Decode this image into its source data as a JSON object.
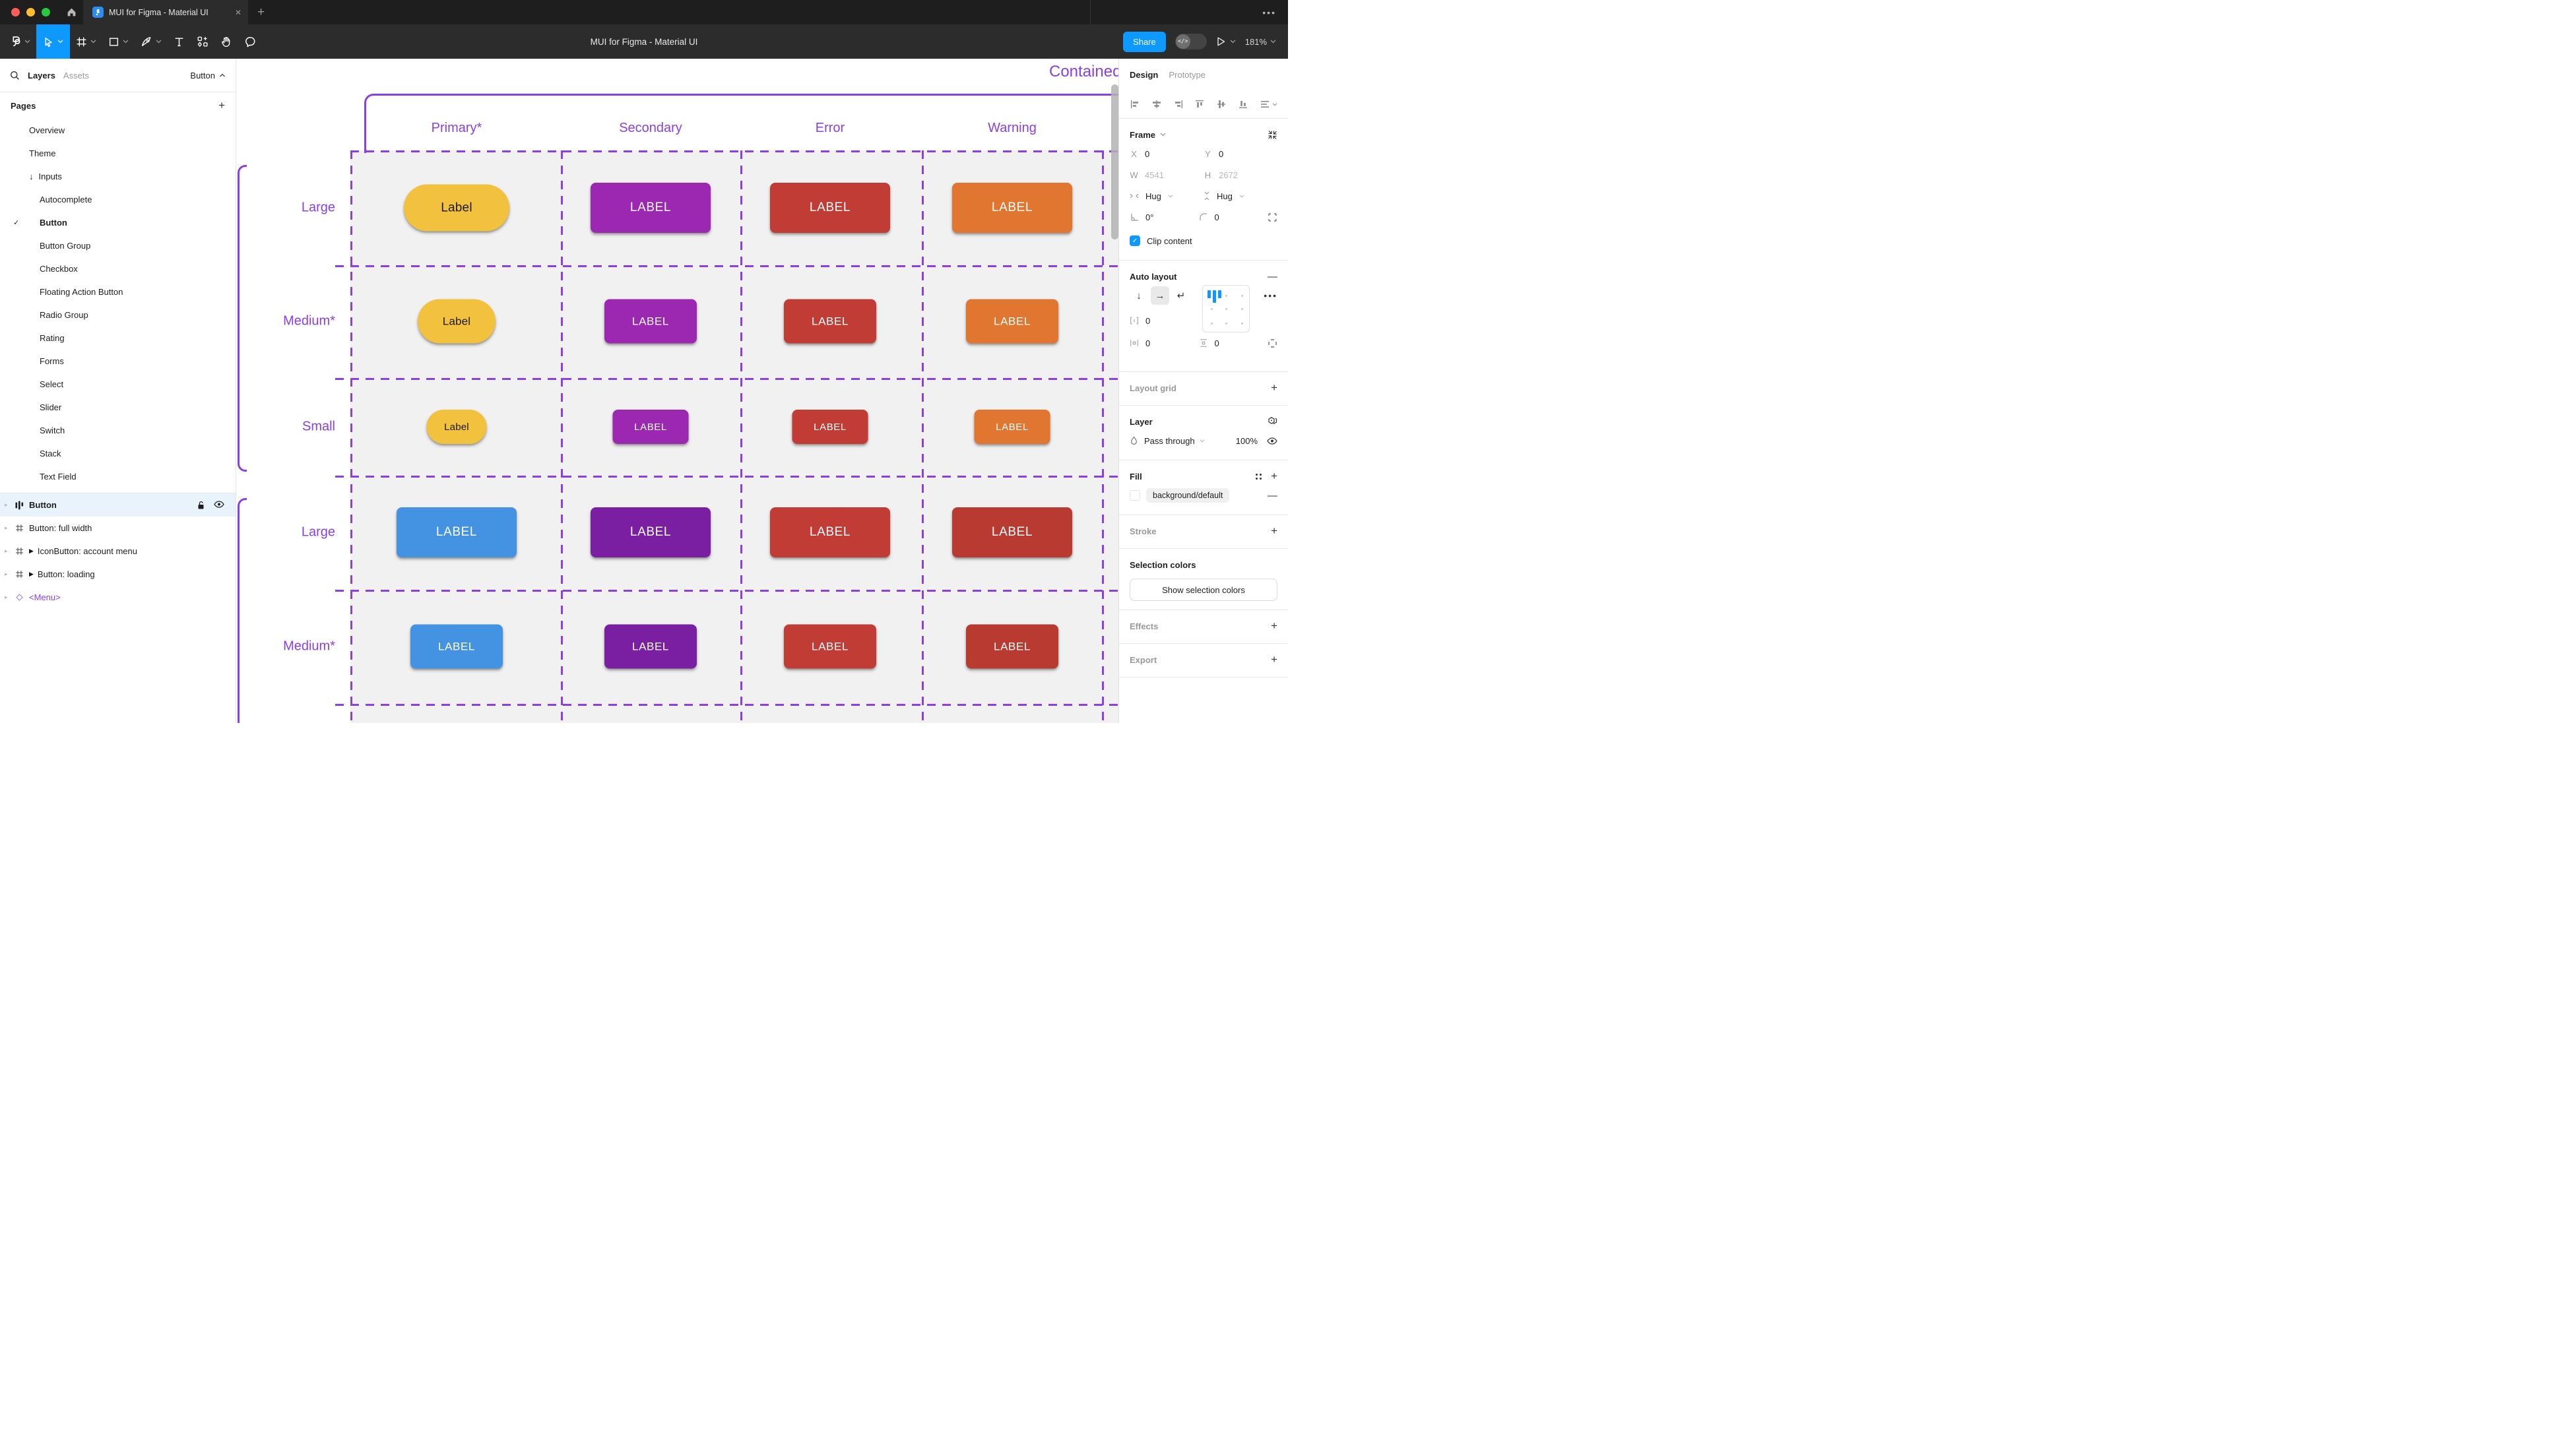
{
  "window": {
    "tab_title": "MUI for Figma - Material UI",
    "toolbar_title": "MUI for Figma - Material UI",
    "close_glyph": "✕",
    "new_tab_glyph": "+",
    "more_glyph": "•••",
    "share_label": "Share",
    "dev_toggle_glyph": "</>",
    "zoom_level": "181%"
  },
  "left_panel": {
    "tabs": {
      "layers": "Layers",
      "assets": "Assets"
    },
    "jump_label": "Button",
    "pages_title": "Pages",
    "add_glyph": "+",
    "pages": [
      {
        "label": "Overview",
        "level": 1
      },
      {
        "label": "Theme",
        "level": 1
      },
      {
        "label": "Inputs",
        "level": 1,
        "arrow": "↓"
      },
      {
        "label": "Autocomplete",
        "level": 2
      },
      {
        "label": "Button",
        "level": 2,
        "checked": true,
        "bold": true
      },
      {
        "label": "Button Group",
        "level": 2
      },
      {
        "label": "Checkbox",
        "level": 2
      },
      {
        "label": "Floating Action Button",
        "level": 2
      },
      {
        "label": "Radio Group",
        "level": 2
      },
      {
        "label": "Rating",
        "level": 2
      },
      {
        "label": "Forms",
        "level": 2
      },
      {
        "label": "Select",
        "level": 2
      },
      {
        "label": "Slider",
        "level": 2
      },
      {
        "label": "Switch",
        "level": 2
      },
      {
        "label": "Stack",
        "level": 2
      },
      {
        "label": "Text Field",
        "level": 2
      }
    ],
    "layers": [
      {
        "label": "Button",
        "icon": "auto-layout",
        "selected": true,
        "bold": true
      },
      {
        "label": "Button: full width",
        "icon": "frame"
      },
      {
        "label": "IconButton: account menu",
        "icon": "frame",
        "instance": true
      },
      {
        "label": "Button: loading",
        "icon": "frame",
        "instance": true
      },
      {
        "label": "<Menu>",
        "icon": "component",
        "purple": true
      }
    ]
  },
  "right_panel": {
    "tabs": {
      "design": "Design",
      "prototype": "Prototype"
    },
    "frame": {
      "title": "Frame",
      "x_label": "X",
      "x_value": "0",
      "y_label": "Y",
      "y_value": "0",
      "w_label": "W",
      "w_value": "4541",
      "h_label": "H",
      "h_value": "2672",
      "hug_h": "Hug",
      "hug_v": "Hug",
      "rotation": "0°",
      "corner_radius": "0",
      "clip_label": "Clip content",
      "clip_checked": "✓"
    },
    "auto_layout": {
      "title": "Auto layout",
      "dir_down": "↓",
      "dir_right": "→",
      "dir_wrap": "↵",
      "gap_value": "0",
      "pad_h_value": "0",
      "pad_v_value": "0",
      "more_glyph": "•••",
      "collapse_glyph": "—"
    },
    "layout_grid": {
      "title": "Layout grid",
      "add_glyph": "+"
    },
    "layer": {
      "title": "Layer",
      "blend_mode": "Pass through",
      "opacity": "100%"
    },
    "fill": {
      "title": "Fill",
      "token": "background/default",
      "add_glyph": "+",
      "remove_glyph": "—"
    },
    "stroke": {
      "title": "Stroke",
      "add_glyph": "+"
    },
    "selection_colors": {
      "title": "Selection colors",
      "button_label": "Show selection colors"
    },
    "effects": {
      "title": "Effects",
      "add_glyph": "+"
    },
    "export": {
      "title": "Export",
      "add_glyph": "+"
    }
  },
  "canvas": {
    "frame_title": "Contained",
    "columns": [
      "Primary*",
      "Secondary",
      "Error",
      "Warning"
    ],
    "rows": [
      {
        "label": "Large",
        "buttons": [
          {
            "text": "Label",
            "bg": "#F2C13D",
            "fg": "#1C1913",
            "size": "lg",
            "shape": "pill"
          },
          {
            "text": "LABEL",
            "bg": "#9C27B0",
            "fg": "#FFFFFF",
            "size": "lg",
            "shape": "rect"
          },
          {
            "text": "LABEL",
            "bg": "#C13C35",
            "fg": "#FFFFFF",
            "size": "lg",
            "shape": "rect"
          },
          {
            "text": "LABEL",
            "bg": "#E0762F",
            "fg": "#FFFFFF",
            "size": "lg",
            "shape": "rect"
          }
        ]
      },
      {
        "label": "Medium*",
        "buttons": [
          {
            "text": "Label",
            "bg": "#F2C13D",
            "fg": "#1C1913",
            "size": "md",
            "shape": "pill"
          },
          {
            "text": "LABEL",
            "bg": "#9C27B0",
            "fg": "#FFFFFF",
            "size": "md",
            "shape": "rect"
          },
          {
            "text": "LABEL",
            "bg": "#C13C35",
            "fg": "#FFFFFF",
            "size": "md",
            "shape": "rect"
          },
          {
            "text": "LABEL",
            "bg": "#E0762F",
            "fg": "#FFFFFF",
            "size": "md",
            "shape": "rect"
          }
        ]
      },
      {
        "label": "Small",
        "buttons": [
          {
            "text": "Label",
            "bg": "#F2C13D",
            "fg": "#1C1913",
            "size": "sm",
            "shape": "pill"
          },
          {
            "text": "LABEL",
            "bg": "#9C27B0",
            "fg": "#FFFFFF",
            "size": "sm",
            "shape": "rect"
          },
          {
            "text": "LABEL",
            "bg": "#C13C35",
            "fg": "#FFFFFF",
            "size": "sm",
            "shape": "rect"
          },
          {
            "text": "LABEL",
            "bg": "#E0762F",
            "fg": "#FFFFFF",
            "size": "sm",
            "shape": "rect"
          }
        ]
      },
      {
        "label": "Large",
        "buttons": [
          {
            "text": "LABEL",
            "bg": "#4493E2",
            "fg": "#FFFFFF",
            "size": "lg",
            "shape": "rect"
          },
          {
            "text": "LABEL",
            "bg": "#7B1FA2",
            "fg": "#FFFFFF",
            "size": "lg",
            "shape": "rect"
          },
          {
            "text": "LABEL",
            "bg": "#C13C35",
            "fg": "#FFFFFF",
            "size": "lg",
            "shape": "rect"
          },
          {
            "text": "LABEL",
            "bg": "#B93A31",
            "fg": "#FFFFFF",
            "size": "lg",
            "shape": "rect"
          }
        ]
      },
      {
        "label": "Medium*",
        "buttons": [
          {
            "text": "LABEL",
            "bg": "#4493E2",
            "fg": "#FFFFFF",
            "size": "md",
            "shape": "rect"
          },
          {
            "text": "LABEL",
            "bg": "#7B1FA2",
            "fg": "#FFFFFF",
            "size": "md",
            "shape": "rect"
          },
          {
            "text": "LABEL",
            "bg": "#C13C35",
            "fg": "#FFFFFF",
            "size": "md",
            "shape": "rect"
          },
          {
            "text": "LABEL",
            "bg": "#B93A31",
            "fg": "#FFFFFF",
            "size": "md",
            "shape": "rect"
          }
        ]
      }
    ]
  },
  "colors": {
    "accent_purple": "#8A3FE8",
    "figma_blue": "#0D99FF",
    "selected_row": "#E8F3FC",
    "traffic_red": "#FF5F57",
    "traffic_yellow": "#FEBC2E",
    "traffic_green": "#28C840",
    "toolbar_bg": "#2C2C2C",
    "tabbar_bg": "#1E1E1E",
    "grid_bg": "#F1F1F1"
  }
}
